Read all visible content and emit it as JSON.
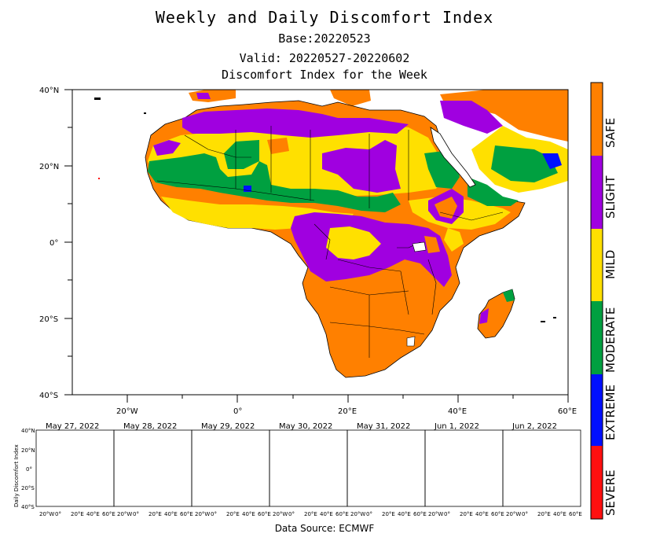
{
  "header": {
    "title": "Weekly and Daily Discomfort Index",
    "base": "Base:20220523",
    "valid": "Valid: 20220527-20220602",
    "subtitle": "Discomfort Index for the Week"
  },
  "main_map": {
    "lat_labels": [
      "40°N",
      "20°N",
      "0°",
      "20°S",
      "40°S"
    ],
    "lon_labels": [
      "20°W",
      "0°",
      "20°E",
      "40°E",
      "60°E"
    ]
  },
  "legend": {
    "categories": [
      {
        "label": "SAFE",
        "color": "#ff8000"
      },
      {
        "label": "SLIGHT",
        "color": "#a000e0"
      },
      {
        "label": "MILD",
        "color": "#ffe000"
      },
      {
        "label": "MODERATE",
        "color": "#00a040"
      },
      {
        "label": "EXTREME",
        "color": "#0010ff"
      },
      {
        "label": "SEVERE",
        "color": "#ff1010"
      }
    ]
  },
  "daily": {
    "axis_title": "Daily Discomfort Index",
    "lat_labels": [
      "40°N",
      "20°N",
      "0°",
      "20°S",
      "40°S"
    ],
    "lon_labels": [
      "20°W",
      "0°",
      "20°E",
      "40°E",
      "60°E"
    ],
    "dates": [
      "May 27, 2022",
      "May 28, 2022",
      "May 29, 2022",
      "May 30, 2022",
      "May 31, 2022",
      "Jun 1, 2022",
      "Jun 2, 2022"
    ]
  },
  "footer": {
    "source": "Data Source: ECMWF"
  }
}
